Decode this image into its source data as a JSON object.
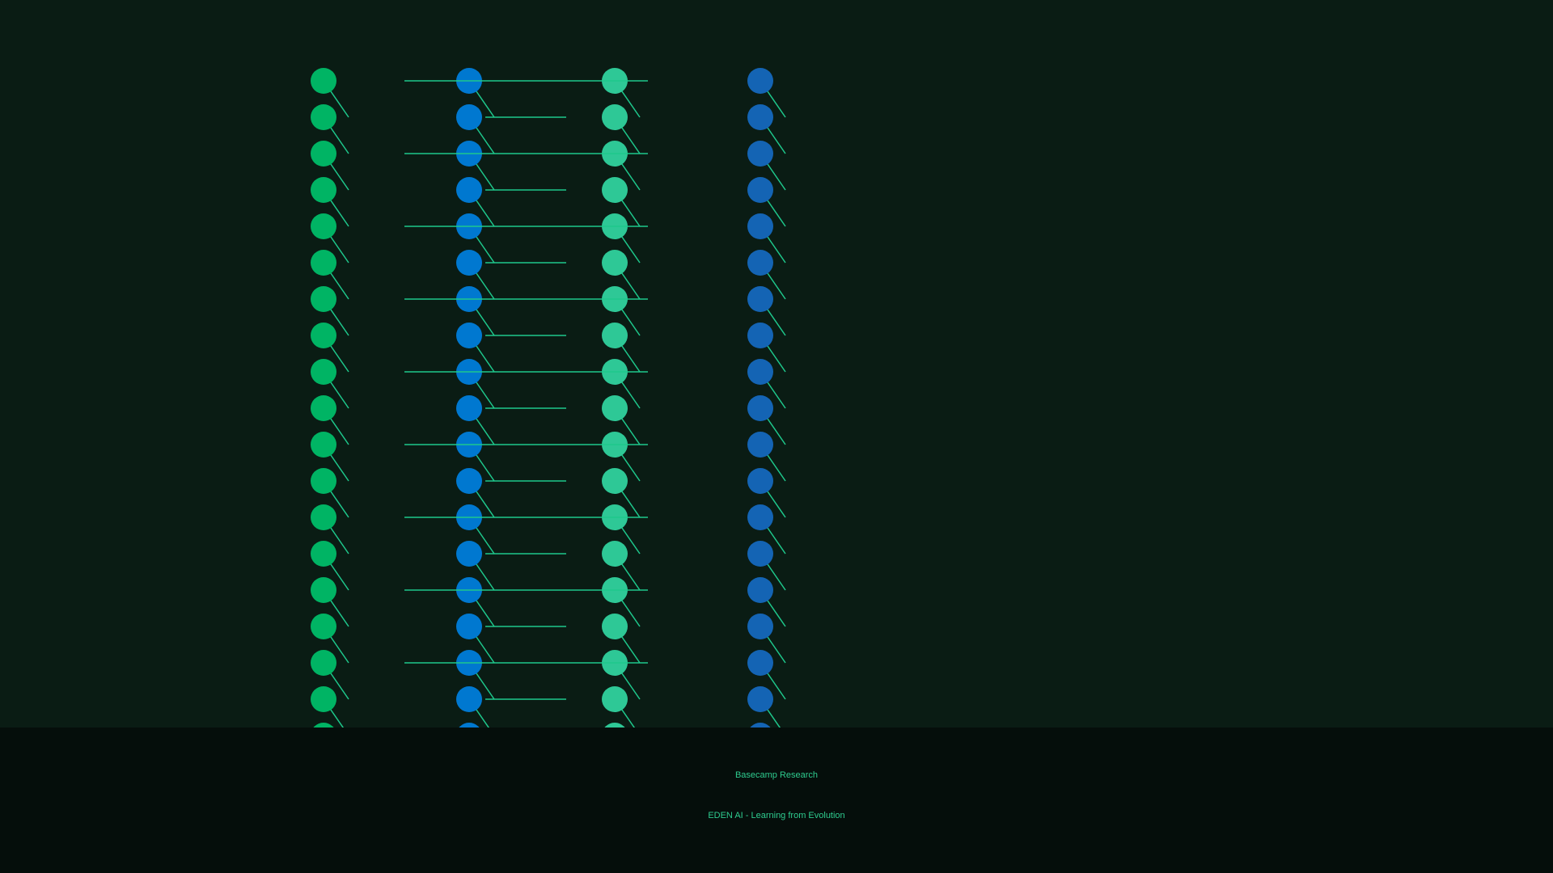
{
  "footer": {
    "brand": "Basecamp Research",
    "tagline": "EDEN AI - Learning from Evolution"
  }
}
